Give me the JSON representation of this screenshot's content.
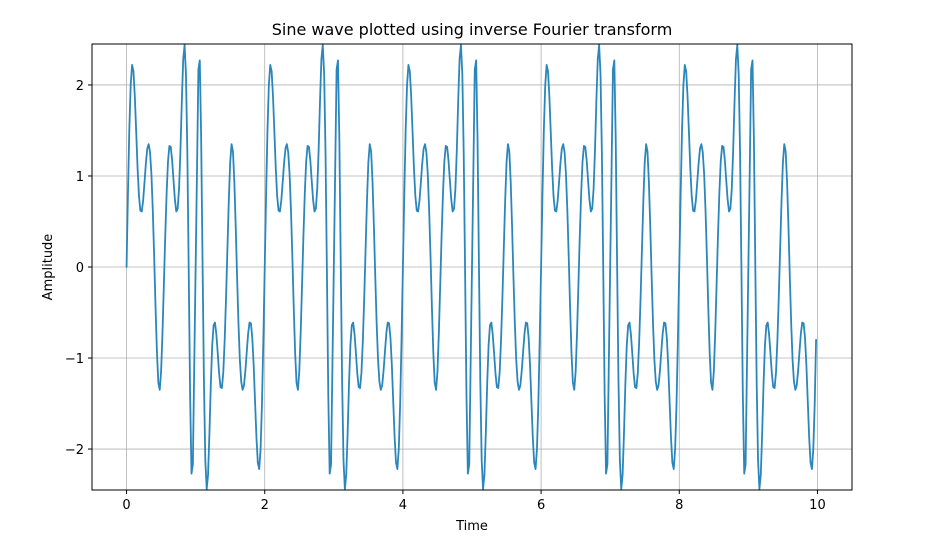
{
  "chart_data": {
    "type": "line",
    "title": "Sine wave plotted using inverse Fourier transform",
    "xlabel": "Time",
    "ylabel": "Amplitude",
    "xlim": [
      -0.5,
      10.5
    ],
    "ylim": [
      -2.45,
      2.45
    ],
    "x_ticks": [
      0,
      2,
      4,
      6,
      8,
      10
    ],
    "x_tick_labels": [
      "0",
      "2",
      "4",
      "6",
      "8",
      "10"
    ],
    "y_ticks": [
      -2,
      -1,
      0,
      1,
      2
    ],
    "y_tick_labels": [
      "−2",
      "−1",
      "0",
      "1",
      "2"
    ],
    "grid": true,
    "line_color": "#2a86bb",
    "series": [
      {
        "x": [
          0,
          0.02,
          0.04,
          0.06,
          0.08,
          0.1,
          0.12,
          0.14,
          0.16,
          0.18,
          0.2,
          0.22,
          0.24,
          0.26,
          0.28,
          0.3,
          0.32,
          0.34,
          0.36,
          0.38,
          0.4,
          0.42,
          0.44,
          0.46,
          0.48,
          0.5,
          0.52,
          0.54,
          0.56,
          0.58,
          0.6,
          0.62,
          0.64,
          0.66,
          0.68,
          0.7,
          0.72,
          0.74,
          0.76,
          0.78,
          0.8,
          0.82,
          0.84,
          0.86,
          0.88,
          0.9,
          0.92,
          0.94,
          0.96,
          0.98,
          1,
          1.02,
          1.04,
          1.06,
          1.08,
          1.1,
          1.12,
          1.14,
          1.16,
          1.18,
          1.2,
          1.22,
          1.24,
          1.26,
          1.28,
          1.3,
          1.32,
          1.34,
          1.36,
          1.38,
          1.4,
          1.42,
          1.44,
          1.46,
          1.48,
          1.5,
          1.52,
          1.54,
          1.56,
          1.58,
          1.6,
          1.62,
          1.64,
          1.66,
          1.68,
          1.7,
          1.72,
          1.74,
          1.76,
          1.78,
          1.8,
          1.82,
          1.84,
          1.86,
          1.88,
          1.9,
          1.92,
          1.94,
          1.96,
          1.98,
          2,
          2.02,
          2.04,
          2.06,
          2.08,
          2.1,
          2.12,
          2.14,
          2.16,
          2.18,
          2.2,
          2.22,
          2.24,
          2.26,
          2.28,
          2.3,
          2.32,
          2.34,
          2.36,
          2.38,
          2.4,
          2.42,
          2.44,
          2.46,
          2.48,
          2.5,
          2.52,
          2.54,
          2.56,
          2.58,
          2.6,
          2.62,
          2.64,
          2.66,
          2.68,
          2.7,
          2.72,
          2.74,
          2.76,
          2.78,
          2.8,
          2.82,
          2.84,
          2.86,
          2.88,
          2.9,
          2.92,
          2.94,
          2.96,
          2.98,
          3,
          3.02,
          3.04,
          3.06,
          3.08,
          3.1,
          3.12,
          3.14,
          3.16,
          3.18,
          3.2,
          3.22,
          3.24,
          3.26,
          3.28,
          3.3,
          3.32,
          3.34,
          3.36,
          3.38,
          3.4,
          3.42,
          3.44,
          3.46,
          3.48,
          3.5,
          3.52,
          3.54,
          3.56,
          3.58,
          3.6,
          3.62,
          3.64,
          3.66,
          3.68,
          3.7,
          3.72,
          3.74,
          3.76,
          3.78,
          3.8,
          3.82,
          3.84,
          3.86,
          3.88,
          3.9,
          3.92,
          3.94,
          3.96,
          3.98,
          4,
          4.02,
          4.04,
          4.06,
          4.08,
          4.1,
          4.12,
          4.14,
          4.16,
          4.18,
          4.2,
          4.22,
          4.24,
          4.26,
          4.28,
          4.3,
          4.32,
          4.34,
          4.36,
          4.38,
          4.4,
          4.42,
          4.44,
          4.46,
          4.48,
          4.5,
          4.52,
          4.54,
          4.56,
          4.58,
          4.6,
          4.62,
          4.64,
          4.66,
          4.68,
          4.7,
          4.72,
          4.74,
          4.76,
          4.78,
          4.8,
          4.82,
          4.84,
          4.86,
          4.88,
          4.9,
          4.92,
          4.94,
          4.96,
          4.98,
          5,
          5.02,
          5.04,
          5.06,
          5.08,
          5.1,
          5.12,
          5.14,
          5.16,
          5.18,
          5.2,
          5.22,
          5.24,
          5.26,
          5.28,
          5.3,
          5.32,
          5.34,
          5.36,
          5.38,
          5.4,
          5.42,
          5.44,
          5.46,
          5.48,
          5.5,
          5.52,
          5.54,
          5.56,
          5.58,
          5.6,
          5.62,
          5.64,
          5.66,
          5.68,
          5.7,
          5.72,
          5.74,
          5.76,
          5.78,
          5.8,
          5.82,
          5.84,
          5.86,
          5.88,
          5.9,
          5.92,
          5.94,
          5.96,
          5.98,
          6,
          6.02,
          6.04,
          6.06,
          6.08,
          6.1,
          6.12,
          6.14,
          6.16,
          6.18,
          6.2,
          6.22,
          6.24,
          6.26,
          6.28,
          6.3,
          6.32,
          6.34,
          6.36,
          6.38,
          6.4,
          6.42,
          6.44,
          6.46,
          6.48,
          6.5,
          6.52,
          6.54,
          6.56,
          6.58,
          6.6,
          6.62,
          6.64,
          6.66,
          6.68,
          6.7,
          6.72,
          6.74,
          6.76,
          6.78,
          6.8,
          6.82,
          6.84,
          6.86,
          6.88,
          6.9,
          6.92,
          6.94,
          6.96,
          6.98,
          7,
          7.02,
          7.04,
          7.06,
          7.08,
          7.1,
          7.12,
          7.14,
          7.16,
          7.18,
          7.2,
          7.22,
          7.24,
          7.26,
          7.28,
          7.3,
          7.32,
          7.34,
          7.36,
          7.38,
          7.4,
          7.42,
          7.44,
          7.46,
          7.48,
          7.5,
          7.52,
          7.54,
          7.56,
          7.58,
          7.6,
          7.62,
          7.64,
          7.66,
          7.68,
          7.7,
          7.72,
          7.74,
          7.76,
          7.78,
          7.8,
          7.82,
          7.84,
          7.86,
          7.88,
          7.9,
          7.92,
          7.94,
          7.96,
          7.98,
          8,
          8.02,
          8.04,
          8.06,
          8.08,
          8.1,
          8.12,
          8.14,
          8.16,
          8.18,
          8.2,
          8.22,
          8.24,
          8.26,
          8.28,
          8.3,
          8.32,
          8.34,
          8.36,
          8.38,
          8.4,
          8.42,
          8.44,
          8.46,
          8.48,
          8.5,
          8.52,
          8.54,
          8.56,
          8.58,
          8.6,
          8.62,
          8.64,
          8.66,
          8.68,
          8.7,
          8.72,
          8.74,
          8.76,
          8.78,
          8.8,
          8.82,
          8.84,
          8.86,
          8.88,
          8.9,
          8.92,
          8.94,
          8.96,
          8.98,
          9,
          9.02,
          9.04,
          9.06,
          9.08,
          9.1,
          9.12,
          9.14,
          9.16,
          9.18,
          9.2,
          9.22,
          9.24,
          9.26,
          9.28,
          9.3,
          9.32,
          9.34,
          9.36,
          9.38,
          9.4,
          9.42,
          9.44,
          9.46,
          9.48,
          9.5,
          9.52,
          9.54,
          9.56,
          9.58,
          9.6,
          9.62,
          9.64,
          9.66,
          9.68,
          9.7,
          9.72,
          9.74,
          9.76,
          9.78,
          9.8,
          9.82,
          9.84,
          9.86,
          9.88,
          9.9,
          9.92,
          9.94,
          9.96,
          9.98
        ],
        "y": [
          0,
          0.8,
          1.51,
          2.0,
          2.22,
          2.15,
          1.87,
          1.48,
          1.08,
          0.78,
          0.62,
          0.61,
          0.73,
          0.93,
          1.14,
          1.3,
          1.35,
          1.26,
          1.02,
          0.62,
          0.11,
          -0.45,
          -0.94,
          -1.27,
          -1.35,
          -1.15,
          -0.73,
          -0.2,
          0.34,
          0.81,
          1.16,
          1.33,
          1.32,
          1.17,
          0.95,
          0.74,
          0.61,
          0.64,
          0.86,
          1.28,
          1.82,
          2.28,
          2.44,
          2.12,
          1.25,
          -0.05,
          -1.41,
          -2.27,
          -2.17,
          -1.07,
          0,
          1.07,
          2.17,
          2.27,
          1.41,
          0.05,
          -1.25,
          -2.12,
          -2.44,
          -2.28,
          -1.82,
          -1.28,
          -0.86,
          -0.64,
          -0.61,
          -0.74,
          -0.95,
          -1.17,
          -1.32,
          -1.33,
          -1.16,
          -0.81,
          -0.34,
          0.2,
          0.73,
          1.15,
          1.35,
          1.27,
          0.94,
          0.45,
          -0.11,
          -0.62,
          -1.02,
          -1.26,
          -1.35,
          -1.3,
          -1.14,
          -0.93,
          -0.73,
          -0.61,
          -0.62,
          -0.78,
          -1.08,
          -1.48,
          -1.87,
          -2.15,
          -2.22,
          -2.0,
          -1.51,
          -0.8,
          0,
          0.8,
          1.51,
          2.0,
          2.22,
          2.15,
          1.87,
          1.48,
          1.08,
          0.78,
          0.62,
          0.61,
          0.73,
          0.93,
          1.14,
          1.3,
          1.35,
          1.26,
          1.02,
          0.62,
          0.11,
          -0.45,
          -0.94,
          -1.27,
          -1.35,
          -1.15,
          -0.73,
          -0.2,
          0.34,
          0.81,
          1.16,
          1.33,
          1.32,
          1.17,
          0.95,
          0.74,
          0.61,
          0.64,
          0.86,
          1.28,
          1.82,
          2.28,
          2.44,
          2.12,
          1.25,
          -0.05,
          -1.41,
          -2.27,
          -2.17,
          -1.07,
          0,
          1.07,
          2.17,
          2.27,
          1.41,
          0.05,
          -1.25,
          -2.12,
          -2.44,
          -2.28,
          -1.82,
          -1.28,
          -0.86,
          -0.64,
          -0.61,
          -0.74,
          -0.95,
          -1.17,
          -1.32,
          -1.33,
          -1.16,
          -0.81,
          -0.34,
          0.2,
          0.73,
          1.15,
          1.35,
          1.27,
          0.94,
          0.45,
          -0.11,
          -0.62,
          -1.02,
          -1.26,
          -1.35,
          -1.3,
          -1.14,
          -0.93,
          -0.73,
          -0.61,
          -0.62,
          -0.78,
          -1.08,
          -1.48,
          -1.87,
          -2.15,
          -2.22,
          -2.0,
          -1.51,
          -0.8,
          0,
          0.8,
          1.51,
          2.0,
          2.22,
          2.15,
          1.87,
          1.48,
          1.08,
          0.78,
          0.62,
          0.61,
          0.73,
          0.93,
          1.14,
          1.3,
          1.35,
          1.26,
          1.02,
          0.62,
          0.11,
          -0.45,
          -0.94,
          -1.27,
          -1.35,
          -1.15,
          -0.73,
          -0.2,
          0.34,
          0.81,
          1.16,
          1.33,
          1.32,
          1.17,
          0.95,
          0.74,
          0.61,
          0.64,
          0.86,
          1.28,
          1.82,
          2.28,
          2.44,
          2.12,
          1.25,
          -0.05,
          -1.41,
          -2.27,
          -2.17,
          -1.07,
          0,
          1.07,
          2.17,
          2.27,
          1.41,
          0.05,
          -1.25,
          -2.12,
          -2.44,
          -2.28,
          -1.82,
          -1.28,
          -0.86,
          -0.64,
          -0.61,
          -0.74,
          -0.95,
          -1.17,
          -1.32,
          -1.33,
          -1.16,
          -0.81,
          -0.34,
          0.2,
          0.73,
          1.15,
          1.35,
          1.27,
          0.94,
          0.45,
          -0.11,
          -0.62,
          -1.02,
          -1.26,
          -1.35,
          -1.3,
          -1.14,
          -0.93,
          -0.73,
          -0.61,
          -0.62,
          -0.78,
          -1.08,
          -1.48,
          -1.87,
          -2.15,
          -2.22,
          -2.0,
          -1.51,
          -0.8,
          0,
          0.8,
          1.51,
          2.0,
          2.22,
          2.15,
          1.87,
          1.48,
          1.08,
          0.78,
          0.62,
          0.61,
          0.73,
          0.93,
          1.14,
          1.3,
          1.35,
          1.26,
          1.02,
          0.62,
          0.11,
          -0.45,
          -0.94,
          -1.27,
          -1.35,
          -1.15,
          -0.73,
          -0.2,
          0.34,
          0.81,
          1.16,
          1.33,
          1.32,
          1.17,
          0.95,
          0.74,
          0.61,
          0.64,
          0.86,
          1.28,
          1.82,
          2.28,
          2.44,
          2.12,
          1.25,
          -0.05,
          -1.41,
          -2.27,
          -2.17,
          -1.07,
          0,
          1.07,
          2.17,
          2.27,
          1.41,
          0.05,
          -1.25,
          -2.12,
          -2.44,
          -2.28,
          -1.82,
          -1.28,
          -0.86,
          -0.64,
          -0.61,
          -0.74,
          -0.95,
          -1.17,
          -1.32,
          -1.33,
          -1.16,
          -0.81,
          -0.34,
          0.2,
          0.73,
          1.15,
          1.35,
          1.27,
          0.94,
          0.45,
          -0.11,
          -0.62,
          -1.02,
          -1.26,
          -1.35,
          -1.3,
          -1.14,
          -0.93,
          -0.73,
          -0.61,
          -0.62,
          -0.78,
          -1.08,
          -1.48,
          -1.87,
          -2.15,
          -2.22,
          -2.0,
          -1.51,
          -0.8,
          0,
          0.8,
          1.51,
          2.0,
          2.22,
          2.15,
          1.87,
          1.48,
          1.08,
          0.78,
          0.62,
          0.61,
          0.73,
          0.93,
          1.14,
          1.3,
          1.35,
          1.26,
          1.02,
          0.62,
          0.11,
          -0.45,
          -0.94,
          -1.27,
          -1.35,
          -1.15,
          -0.73,
          -0.2,
          0.34,
          0.81,
          1.16,
          1.33,
          1.32,
          1.17,
          0.95,
          0.74,
          0.61,
          0.64,
          0.86,
          1.28,
          1.82,
          2.28,
          2.44,
          2.12,
          1.25,
          -0.05,
          -1.41,
          -2.27,
          -2.17,
          -1.07,
          0,
          1.07,
          2.17,
          2.27,
          1.41,
          0.05,
          -1.25,
          -2.12,
          -2.44,
          -2.28,
          -1.82,
          -1.28,
          -0.86,
          -0.64,
          -0.61,
          -0.74,
          -0.95,
          -1.17,
          -1.32,
          -1.33,
          -1.16,
          -0.81,
          -0.34,
          0.2,
          0.73,
          1.15,
          1.35,
          1.27,
          0.94,
          0.45,
          -0.11,
          -0.62,
          -1.02,
          -1.26,
          -1.35,
          -1.3,
          -1.14,
          -0.93,
          -0.73,
          -0.61,
          -0.62,
          -0.78,
          -1.08,
          -1.48,
          -1.87,
          -2.15,
          -2.22,
          -2.0,
          -1.51,
          -0.8
        ]
      }
    ]
  }
}
